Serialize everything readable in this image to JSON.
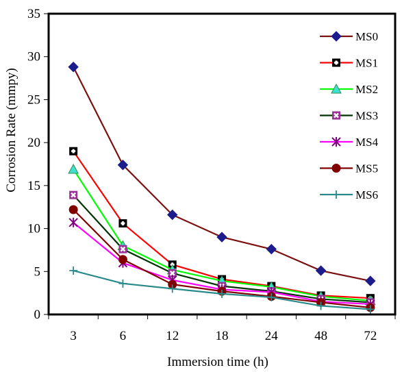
{
  "chart_data": {
    "type": "line",
    "title": "",
    "xlabel": "Immersion time (h)",
    "ylabel": "Corrosion Rate (mmpy)",
    "categories": [
      "3",
      "6",
      "12",
      "18",
      "24",
      "48",
      "72"
    ],
    "ylim": [
      0,
      35
    ],
    "yticks": [
      0,
      5,
      10,
      15,
      20,
      25,
      30,
      35
    ],
    "grid": false,
    "legend_position": "top-right",
    "series": [
      {
        "name": "MS0",
        "values": [
          28.8,
          17.4,
          11.6,
          9.0,
          7.6,
          5.1,
          3.9
        ],
        "color": "#7b1010",
        "marker_color": "#1c1c8c",
        "marker": "diamond"
      },
      {
        "name": "MS1",
        "values": [
          19.0,
          10.6,
          5.8,
          4.1,
          3.3,
          2.2,
          1.9
        ],
        "color": "#ff0000",
        "marker_color": "#000000",
        "marker": "square-plus"
      },
      {
        "name": "MS2",
        "values": [
          16.9,
          8.0,
          5.2,
          3.9,
          3.2,
          2.1,
          1.6
        ],
        "color": "#00ff00",
        "marker_color": "#40e0d0",
        "marker": "triangle"
      },
      {
        "name": "MS3",
        "values": [
          13.9,
          7.6,
          4.8,
          3.3,
          2.7,
          1.8,
          1.4
        ],
        "color": "#003300",
        "marker_color": "#993399",
        "marker": "square-x"
      },
      {
        "name": "MS4",
        "values": [
          10.7,
          6.0,
          4.0,
          2.9,
          2.6,
          1.5,
          1.2
        ],
        "color": "#ff00ff",
        "marker_color": "#800080",
        "marker": "star"
      },
      {
        "name": "MS5",
        "values": [
          12.2,
          6.4,
          3.5,
          2.7,
          2.1,
          1.4,
          0.8
        ],
        "color": "#800000",
        "marker_color": "#800000",
        "marker": "circle"
      },
      {
        "name": "MS6",
        "values": [
          5.1,
          3.6,
          3.0,
          2.4,
          2.0,
          1.0,
          0.6
        ],
        "color": "#2a8a8a",
        "marker_color": "#2a8a8a",
        "marker": "plus"
      }
    ]
  }
}
